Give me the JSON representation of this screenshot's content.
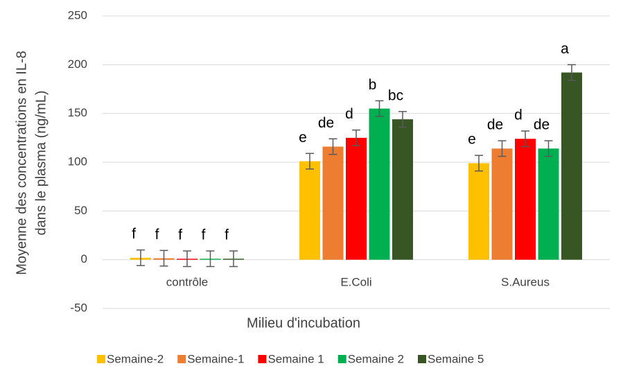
{
  "chart_data": {
    "type": "bar",
    "y_label": [
      "Moyenne des concentrations en IL-8",
      "dans le plasma (ng/mL)"
    ],
    "x_label": "Milieu d'incubation",
    "categories": [
      "contrôle",
      "E.Coli",
      "S.Aureus"
    ],
    "series": [
      {
        "name": "Semaine-2",
        "color": "#FFC000",
        "values": [
          2,
          101,
          99
        ],
        "errors": [
          8,
          8,
          8
        ],
        "letters": [
          "f",
          "e",
          "e"
        ]
      },
      {
        "name": "Semaine-1",
        "color": "#ED7D31",
        "values": [
          1.5,
          116,
          114
        ],
        "errors": [
          8,
          8,
          8
        ],
        "letters": [
          "f",
          "de",
          "de"
        ]
      },
      {
        "name": "Semaine 1",
        "color": "#FF0000",
        "values": [
          1,
          125,
          124
        ],
        "errors": [
          8,
          8,
          8
        ],
        "letters": [
          "f",
          "d",
          "d"
        ]
      },
      {
        "name": "Semaine 2",
        "color": "#00B050",
        "values": [
          1,
          155,
          114
        ],
        "errors": [
          8,
          8,
          8
        ],
        "letters": [
          "f",
          "b",
          "de"
        ]
      },
      {
        "name": "Semaine 5",
        "color": "#375623",
        "values": [
          1,
          144,
          192
        ],
        "errors": [
          8,
          8,
          8
        ],
        "letters": [
          "f",
          "bc",
          "a"
        ]
      }
    ],
    "ylim": [
      -50,
      250
    ],
    "yticks": [
      -50,
      0,
      50,
      100,
      150,
      200,
      250
    ],
    "grid": true,
    "legend": "bottom"
  }
}
